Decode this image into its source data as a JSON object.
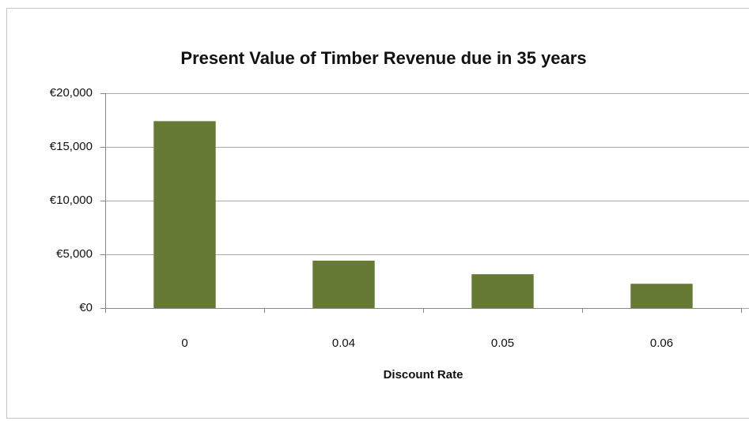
{
  "chart_data": {
    "type": "bar",
    "title": "Present Value of Timber Revenue due in 35 years",
    "x_label": "Discount Rate",
    "categories": [
      "0",
      "0.04",
      "0.05",
      "0.06"
    ],
    "values": [
      17400,
      4410,
      3150,
      2260
    ],
    "color": "#667a34",
    "ylim": [
      0,
      20000
    ],
    "yticks": [
      {
        "value": 0,
        "label": "€0"
      },
      {
        "value": 5000,
        "label": "€5,000"
      },
      {
        "value": 10000,
        "label": "€10,000"
      },
      {
        "value": 15000,
        "label": "€15,000"
      },
      {
        "value": 20000,
        "label": "€20,000"
      }
    ],
    "grid": true
  }
}
